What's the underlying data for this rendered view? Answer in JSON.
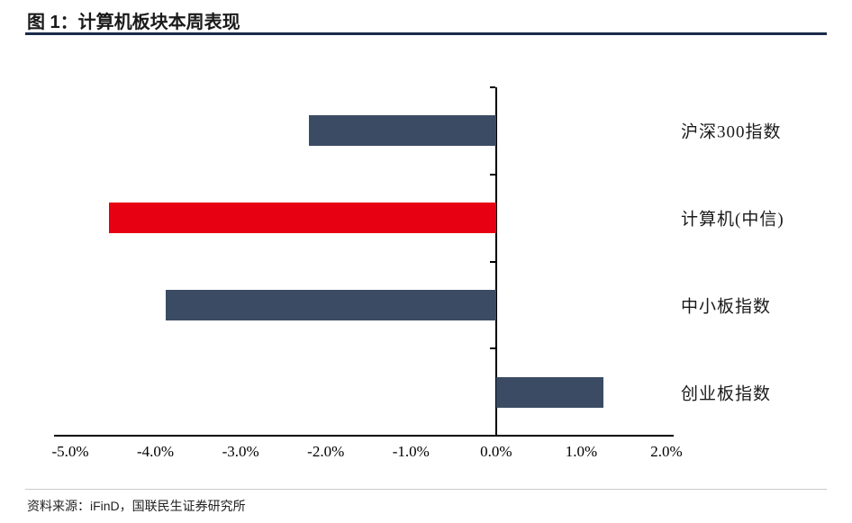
{
  "header": {
    "title": "图 1：计算机板块本周表现"
  },
  "footer": {
    "source": "资料来源：iFinD，国联民生证券研究所"
  },
  "chart_data": {
    "type": "bar",
    "orientation": "horizontal",
    "title": "计算机板块本周表现",
    "categories": [
      "沪深300指数",
      "计算机(中信)",
      "中小板指数",
      "创业板指数"
    ],
    "values": [
      -2.2,
      -4.55,
      -3.88,
      1.26
    ],
    "colors": [
      "#3b4b63",
      "#e60012",
      "#3b4b63",
      "#3b4b63"
    ],
    "highlight_color": "#e60012",
    "bar_color": "#3b4b63",
    "xlim": [
      -5,
      2
    ],
    "x_ticks": [
      "-5.0%",
      "-4.0%",
      "-3.0%",
      "-2.0%",
      "-1.0%",
      "0.0%",
      "1.0%",
      "2.0%"
    ],
    "x_tick_values": [
      -5,
      -4,
      -3,
      -2,
      -1,
      0,
      1,
      2
    ],
    "grid": false,
    "legend": "none",
    "value_unit": "%"
  }
}
